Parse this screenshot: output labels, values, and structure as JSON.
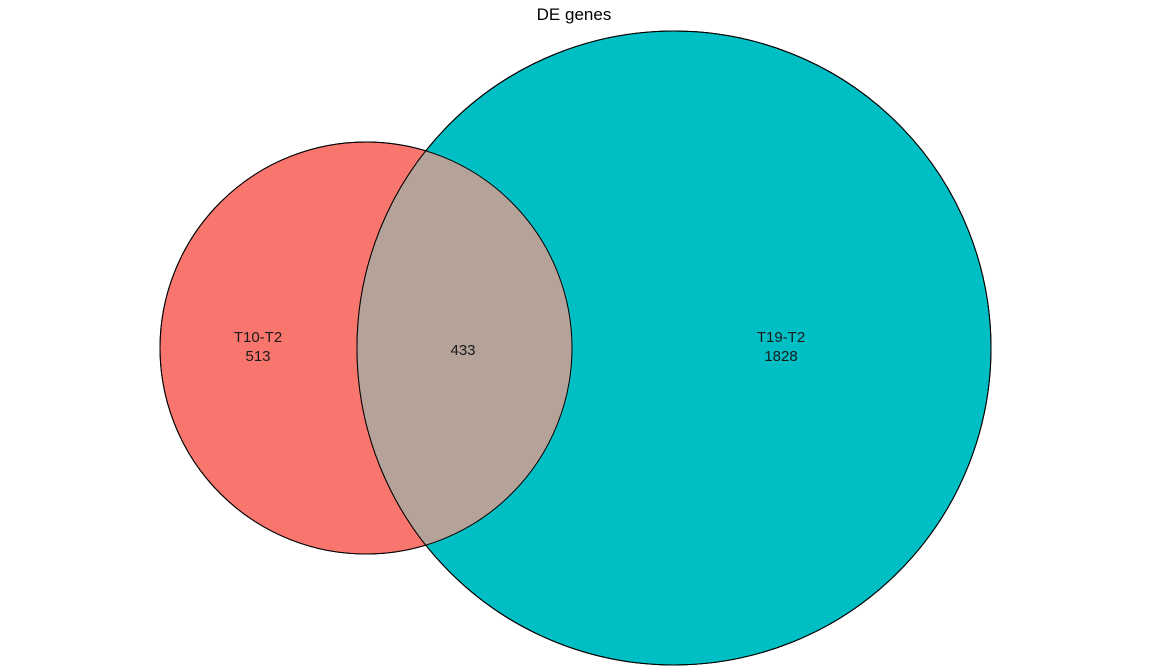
{
  "title": "DE genes",
  "sets": [
    {
      "name": "T10-T2",
      "only_count": "513",
      "color": "#F8766D"
    },
    {
      "name": "T19-T2",
      "only_count": "1828",
      "color": "#00BFC4"
    }
  ],
  "intersection": {
    "count": "433",
    "color": "#B5A39A"
  },
  "outline_color": "#000000"
}
